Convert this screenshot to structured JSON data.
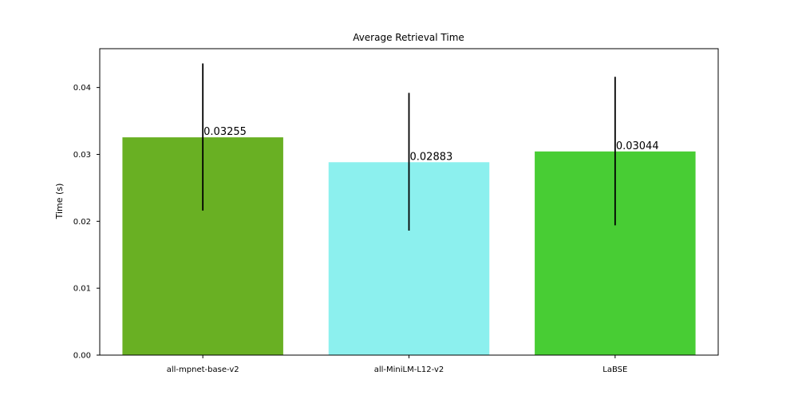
{
  "chart_data": {
    "type": "bar",
    "title": "Average Retrieval Time",
    "xlabel": "",
    "ylabel": "Time (s)",
    "categories": [
      "all-mpnet-base-v2",
      "all-MiniLM-L12-v2",
      "LaBSE"
    ],
    "values": [
      0.03255,
      0.02883,
      0.03044
    ],
    "data_labels": [
      "0.03255",
      "0.02883",
      "0.03044"
    ],
    "error_bars": [
      {
        "low": 0.0216,
        "high": 0.0436
      },
      {
        "low": 0.0186,
        "high": 0.0392
      },
      {
        "low": 0.0194,
        "high": 0.0416
      }
    ],
    "colors": [
      "#69b023",
      "#8cf0ee",
      "#48cd34"
    ],
    "error_bar_color": "#000000",
    "ylim": [
      0,
      0.0458
    ],
    "yticks": [
      0,
      0.01,
      0.02,
      0.03,
      0.04
    ],
    "ytick_labels": [
      "0.00",
      "0.01",
      "0.02",
      "0.03",
      "0.04"
    ],
    "grid": false,
    "legend": "none"
  }
}
